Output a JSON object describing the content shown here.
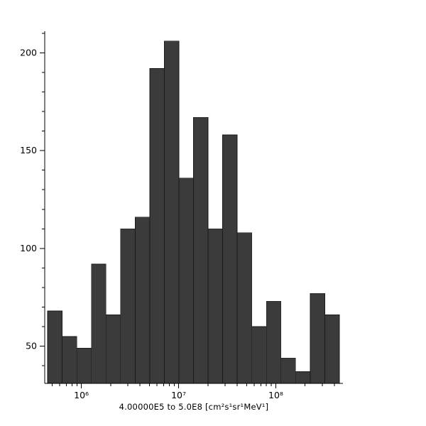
{
  "figure": {
    "background": "#ffffff",
    "bar_fill": "#3b3b3b",
    "bar_stroke": "#1a1a1a",
    "axis_color": "#000000",
    "tick_label_color": "#000000"
  },
  "chart_data": {
    "type": "bar",
    "subtype": "histogram",
    "xscale": "log",
    "xlim": [
      420000,
      490000000
    ],
    "ylim": [
      31,
      211
    ],
    "y_major_ticks": [
      50,
      100,
      150,
      200
    ],
    "y_minor_step": 10,
    "x_major_ticks": [
      {
        "label": "10⁶",
        "value": 1000000
      },
      {
        "label": "10⁷",
        "value": 10000000
      },
      {
        "label": "10⁸",
        "value": 100000000
      }
    ],
    "bins": {
      "start": 450000,
      "decades_per_bin": 0.15,
      "count": 20
    },
    "values": [
      68,
      55,
      49,
      92,
      66,
      110,
      116,
      192,
      206,
      136,
      167,
      110,
      158,
      108,
      60,
      73,
      44,
      37,
      77,
      66
    ],
    "title": "",
    "xlabel": "4.00000E5 to 5.0E8 [cm²s¹sr¹MeV¹]",
    "ylabel": "",
    "grid": false,
    "legend": "none"
  }
}
